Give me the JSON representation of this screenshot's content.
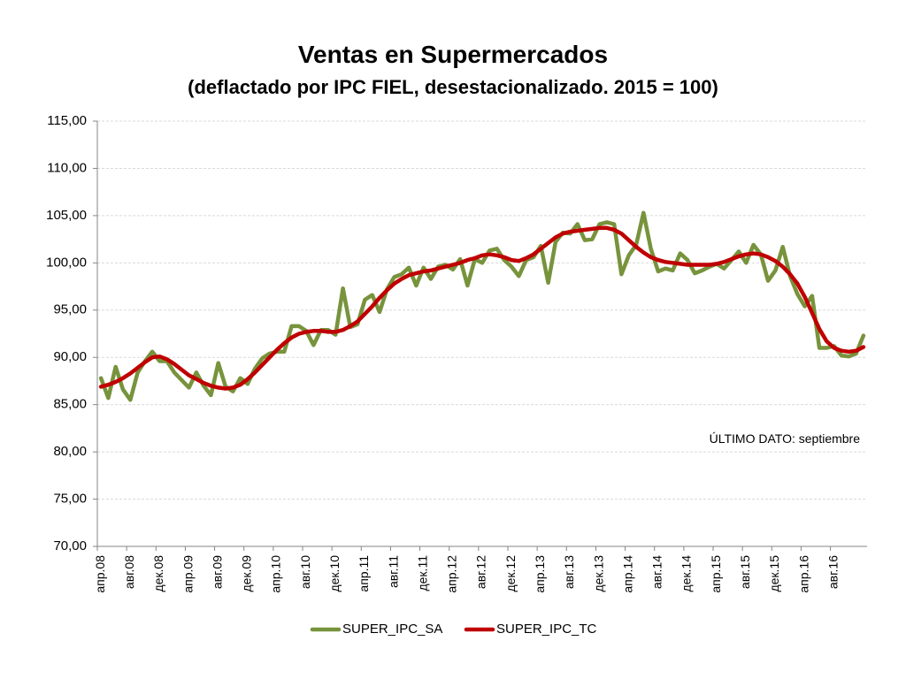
{
  "colors": {
    "sa": "#77933c",
    "tc": "#c00000",
    "grid": "#d9d9d9",
    "axis": "#868686"
  },
  "chart_data": {
    "type": "line",
    "title": "Ventas en Supermercados",
    "subtitle": "(deflactado por IPC FIEL, desestacionalizado. 2015 = 100)",
    "annotation": "ÚLTIMO DATO: septiembre",
    "ylim": [
      70,
      115
    ],
    "y_ticks": [
      "70,00",
      "75,00",
      "80,00",
      "85,00",
      "90,00",
      "95,00",
      "100,00",
      "105,00",
      "110,00",
      "115,00"
    ],
    "grid": true,
    "legend_position": "bottom",
    "x_tick_labels": [
      "апр.08",
      "авг.08",
      "дек.08",
      "апр.09",
      "авг.09",
      "дек.09",
      "апр.10",
      "авг.10",
      "дек.10",
      "апр.11",
      "авг.11",
      "дек.11",
      "апр.12",
      "авг.12",
      "дек.12",
      "апр.13",
      "авг.13",
      "дек.13",
      "апр.14",
      "авг.14",
      "дек.14",
      "апр.15",
      "авг.15",
      "дек.15",
      "апр.16",
      "авг.16"
    ],
    "x_start": "апр.08",
    "x_end": "сен.16",
    "series": [
      {
        "name": "SUPER_IPC_SA",
        "values": [
          87.8,
          85.7,
          89.0,
          86.6,
          85.5,
          88.4,
          89.6,
          90.6,
          89.6,
          89.6,
          88.4,
          87.6,
          86.8,
          88.4,
          87.0,
          86.0,
          89.4,
          86.9,
          86.4,
          87.8,
          87.2,
          88.8,
          89.9,
          90.4,
          90.6,
          90.6,
          93.3,
          93.3,
          92.8,
          91.3,
          92.9,
          92.9,
          92.4,
          97.3,
          93.2,
          93.5,
          96.1,
          96.6,
          94.8,
          97.2,
          98.5,
          98.8,
          99.5,
          97.6,
          99.5,
          98.3,
          99.6,
          99.8,
          99.3,
          100.4,
          97.6,
          100.4,
          100.0,
          101.3,
          101.5,
          100.3,
          99.6,
          98.6,
          100.3,
          100.6,
          101.8,
          97.9,
          102.2,
          103.2,
          103.1,
          104.1,
          102.4,
          102.5,
          104.1,
          104.3,
          104.1,
          98.8,
          100.8,
          101.9,
          105.3,
          101.5,
          99.1,
          99.4,
          99.2,
          101.0,
          100.3,
          98.9,
          99.2,
          99.6,
          99.9,
          99.4,
          100.3,
          101.2,
          100.0,
          101.9,
          100.9,
          98.1,
          99.2,
          101.7,
          98.6,
          96.7,
          95.4,
          96.5,
          91.0,
          91.0,
          91.2,
          90.2,
          90.1,
          90.4,
          92.3
        ]
      },
      {
        "name": "SUPER_IPC_TC",
        "values": [
          86.9,
          87.1,
          87.4,
          87.8,
          88.3,
          88.9,
          89.5,
          90.0,
          90.1,
          89.8,
          89.3,
          88.7,
          88.1,
          87.7,
          87.3,
          87.0,
          86.8,
          86.7,
          86.8,
          87.1,
          87.7,
          88.4,
          89.2,
          90.0,
          90.8,
          91.5,
          92.1,
          92.5,
          92.7,
          92.8,
          92.8,
          92.7,
          92.7,
          92.9,
          93.3,
          93.8,
          94.6,
          95.4,
          96.3,
          97.1,
          97.8,
          98.3,
          98.7,
          98.9,
          99.1,
          99.2,
          99.4,
          99.6,
          99.8,
          100.0,
          100.3,
          100.5,
          100.8,
          100.9,
          100.8,
          100.6,
          100.3,
          100.2,
          100.5,
          100.9,
          101.5,
          102.1,
          102.7,
          103.1,
          103.3,
          103.4,
          103.5,
          103.6,
          103.7,
          103.7,
          103.5,
          103.1,
          102.4,
          101.7,
          101.1,
          100.6,
          100.3,
          100.1,
          100.0,
          99.9,
          99.8,
          99.8,
          99.8,
          99.8,
          99.9,
          100.1,
          100.4,
          100.7,
          100.9,
          101.0,
          100.9,
          100.6,
          100.2,
          99.6,
          98.8,
          97.8,
          96.4,
          94.7,
          93.0,
          91.7,
          91.0,
          90.7,
          90.6,
          90.7,
          91.1
        ]
      }
    ]
  }
}
